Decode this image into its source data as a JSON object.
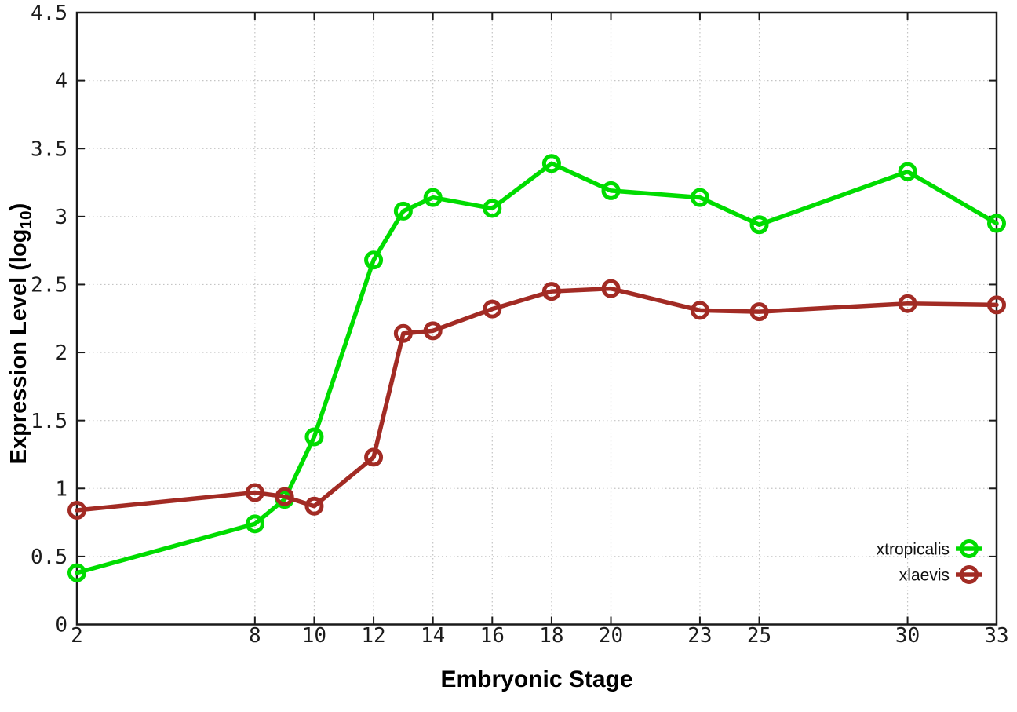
{
  "page": {
    "background": "#ffffff"
  },
  "chart_data": {
    "type": "line",
    "title": "",
    "xlabel": "Embryonic Stage",
    "ylabel": "Expression Level (log10)",
    "ylabel_parts": {
      "prefix": "Expression Level (log",
      "sub": "10",
      "suffix": ")"
    },
    "xlim": [
      2,
      33
    ],
    "ylim": [
      0,
      4.5
    ],
    "xticks": [
      2,
      8,
      10,
      12,
      14,
      16,
      18,
      20,
      23,
      25,
      30,
      33
    ],
    "yticks": [
      0,
      0.5,
      1,
      1.5,
      2,
      2.5,
      3,
      3.5,
      4,
      4.5
    ],
    "ytick_labels": [
      "0",
      "0.5",
      "1",
      "1.5",
      "2",
      "2.5",
      "3",
      "3.5",
      "4",
      "4.5"
    ],
    "grid": true,
    "marker": "open-circle",
    "legend": {
      "position": "inside-bottom-right",
      "items": [
        "xtropicalis",
        "xlaevis"
      ]
    },
    "x": [
      2,
      8,
      9,
      10,
      12,
      13,
      14,
      16,
      18,
      20,
      23,
      25,
      30,
      33
    ],
    "series": [
      {
        "name": "xtropicalis",
        "color": "#00dc00",
        "values": [
          0.38,
          0.74,
          0.92,
          1.38,
          2.68,
          3.04,
          3.14,
          3.06,
          3.39,
          3.19,
          3.14,
          2.94,
          3.33,
          2.95
        ]
      },
      {
        "name": "xlaevis",
        "color": "#a22b24",
        "values": [
          0.84,
          0.97,
          0.94,
          0.87,
          1.23,
          2.14,
          2.16,
          2.32,
          2.45,
          2.47,
          2.31,
          2.3,
          2.36,
          2.35
        ]
      }
    ]
  },
  "colors": {
    "axis": "#1a1a1a",
    "grid": "#c4c4c4",
    "tick_text": "#1c1c1c",
    "background": "#ffffff"
  }
}
